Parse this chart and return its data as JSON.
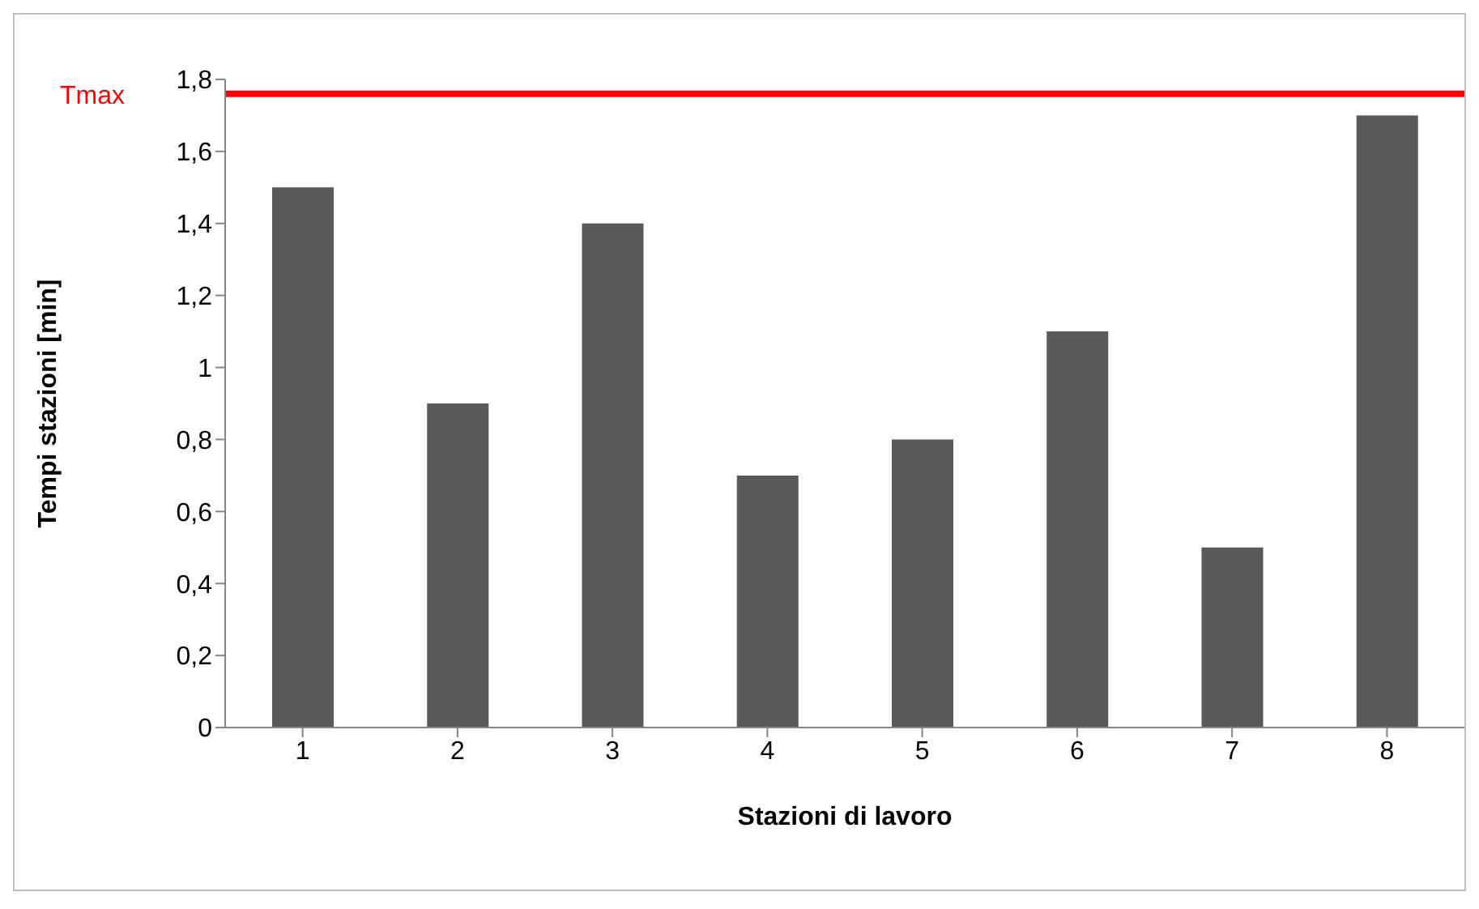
{
  "chart_data": {
    "type": "bar",
    "xlabel": "Stazioni di lavoro",
    "ylabel": "Tempi stazioni [min]",
    "categories": [
      "1",
      "2",
      "3",
      "4",
      "5",
      "6",
      "7",
      "8"
    ],
    "values": [
      1.5,
      0.9,
      1.4,
      0.7,
      0.8,
      1.1,
      0.5,
      1.7
    ],
    "color": "#595959",
    "ylim": [
      0,
      1.8
    ],
    "yticks": [
      0,
      {
        "value": 0.2,
        "label": "0,2"
      },
      {
        "value": 0.4,
        "label": "0,4"
      },
      {
        "value": 0.6,
        "label": "0,6"
      },
      {
        "value": 0.8,
        "label": "0,8"
      },
      1,
      {
        "value": 1.2,
        "label": "1,2"
      },
      {
        "value": 1.4,
        "label": "1,4"
      },
      {
        "value": 1.6,
        "label": "1,6"
      },
      {
        "value": 1.8,
        "label": "1,8"
      }
    ],
    "ref_lines": [
      {
        "axis": "y",
        "value": 1.76,
        "label": "Tmax",
        "color": "#ff0000",
        "line_style": "solid"
      }
    ],
    "grid": false,
    "legend": false
  }
}
